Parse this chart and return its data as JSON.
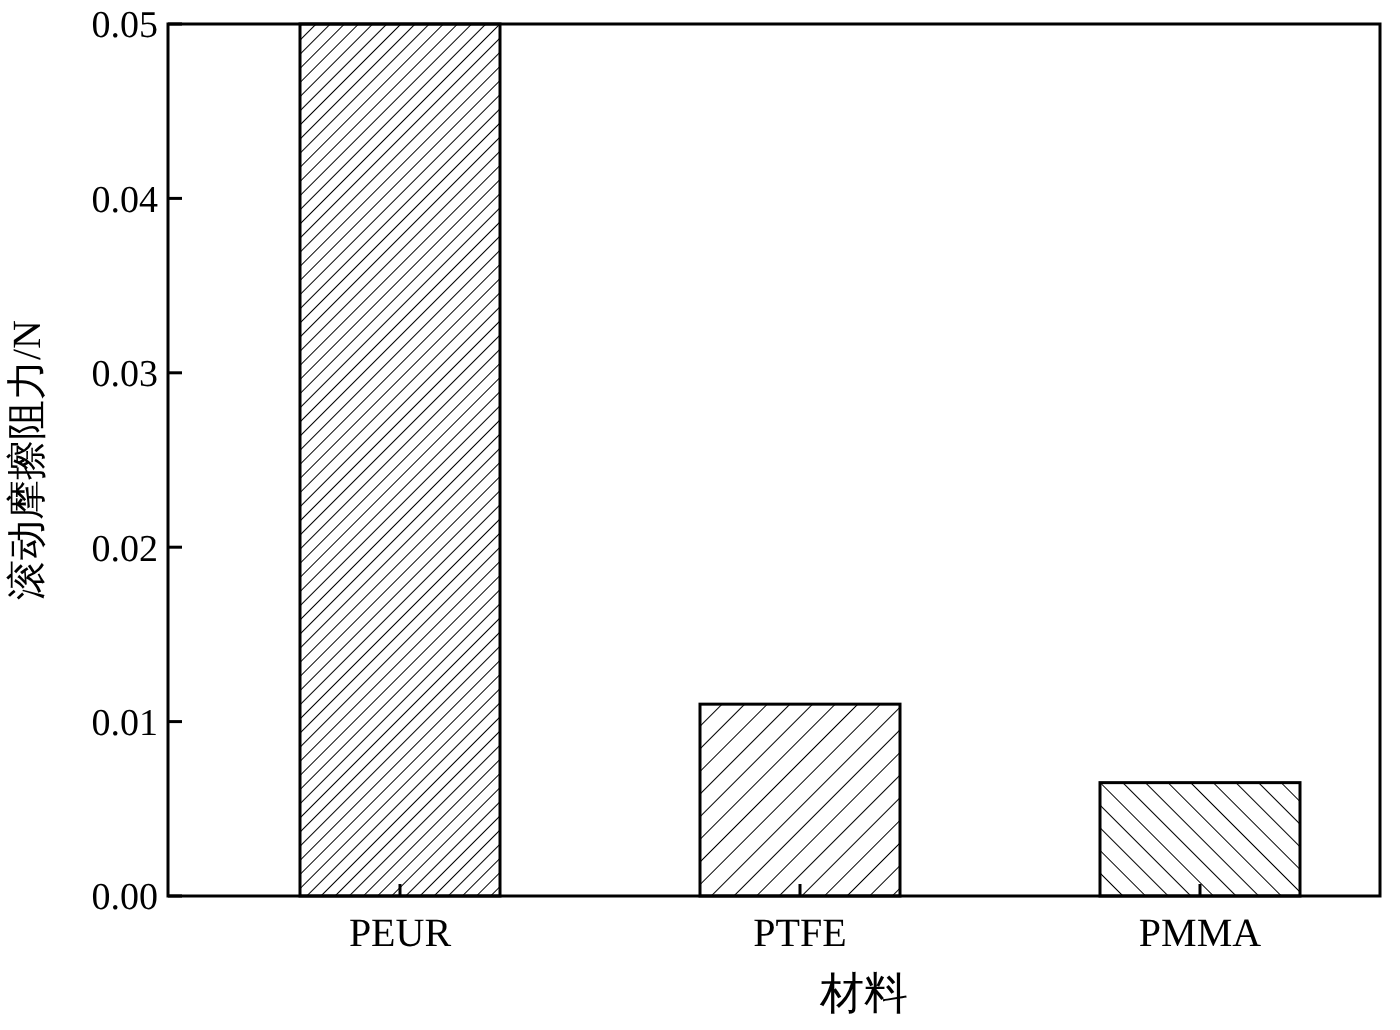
{
  "chart_data": {
    "type": "bar",
    "xlabel": "材料",
    "ylabel": "滚动摩擦阻力/N",
    "categories": [
      "PEUR",
      "PTFE",
      "PMMA"
    ],
    "values": [
      0.05,
      0.011,
      0.0065
    ],
    "color": "#ffffff",
    "ylim": [
      0,
      0.05
    ],
    "yticks": [
      {
        "value": 0,
        "label": "0.00"
      },
      {
        "value": 0.01,
        "label": "0.01"
      },
      {
        "value": 0.02,
        "label": "0.02"
      },
      {
        "value": 0.03,
        "label": "0.03"
      },
      {
        "value": 0.04,
        "label": "0.04"
      },
      {
        "value": 0.05,
        "label": "0.05"
      }
    ],
    "grid": false
  }
}
